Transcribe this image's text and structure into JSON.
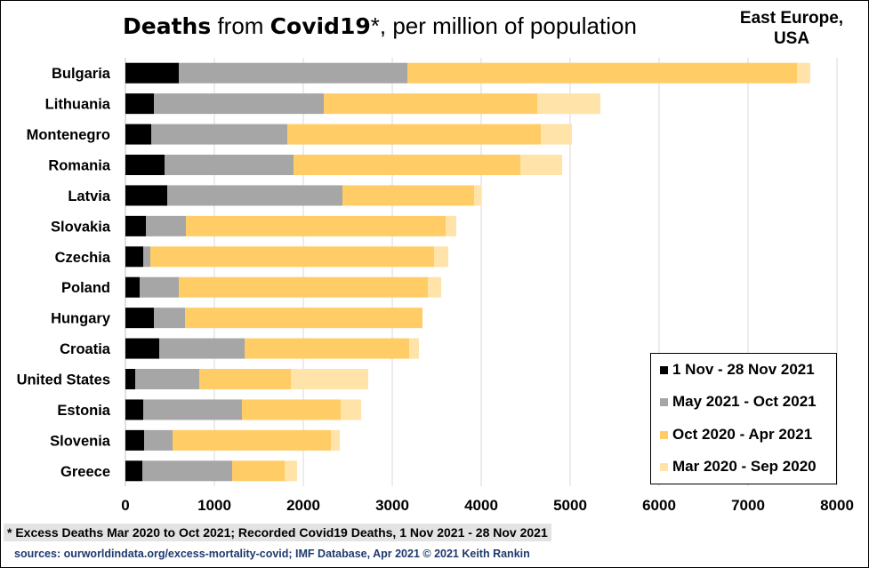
{
  "title": {
    "bold1": "Deaths",
    "mid": " from ",
    "bold2": "Covid19",
    "rest": "*, per million of population"
  },
  "region_label_line1": "East Europe,",
  "region_label_line2": "USA",
  "footnote": "* Excess Deaths Mar 2020 to Oct 2021; Recorded Covid19 Deaths, 1 Nov 2021 - 28 Nov 2021",
  "sources": "sources: ourworldindata.org/excess-mortality-covid;  IMF Database,  Apr 2021       © 2021 Keith Rankin",
  "chart_data": {
    "type": "bar",
    "orientation": "horizontal",
    "stacked": true,
    "categories": [
      "Bulgaria",
      "Lithuania",
      "Montenegro",
      "Romania",
      "Latvia",
      "Slovakia",
      "Czechia",
      "Poland",
      "Hungary",
      "Croatia",
      "United States",
      "Estonia",
      "Slovenia",
      "Greece"
    ],
    "series": [
      {
        "name": "1 Nov - 28 Nov 2021",
        "color": "#000000",
        "values": [
          600,
          320,
          290,
          440,
          470,
          230,
          200,
          160,
          320,
          380,
          110,
          200,
          210,
          190
        ]
      },
      {
        "name": "May 2021 - Oct 2021",
        "color": "#a6a6a6",
        "values": [
          2570,
          1910,
          1530,
          1450,
          1970,
          450,
          80,
          440,
          350,
          960,
          720,
          1110,
          320,
          1010
        ]
      },
      {
        "name": "Oct 2020 - Apr 2021",
        "color": "#ffcc66",
        "values": [
          4380,
          2400,
          2850,
          2550,
          1480,
          2920,
          3190,
          2800,
          2670,
          1850,
          1030,
          1110,
          1780,
          590
        ]
      },
      {
        "name": "Mar 2020 - Sep 2020",
        "color": "#ffe3a9",
        "values": [
          150,
          710,
          350,
          470,
          80,
          120,
          160,
          150,
          0,
          110,
          870,
          230,
          100,
          140
        ]
      }
    ],
    "xlim": [
      0,
      8000
    ],
    "xticks": [
      "0",
      "1000",
      "2000",
      "3000",
      "4000",
      "5000",
      "6000",
      "7000",
      "8000"
    ],
    "grid": true,
    "legend_position": "bottom-right"
  }
}
